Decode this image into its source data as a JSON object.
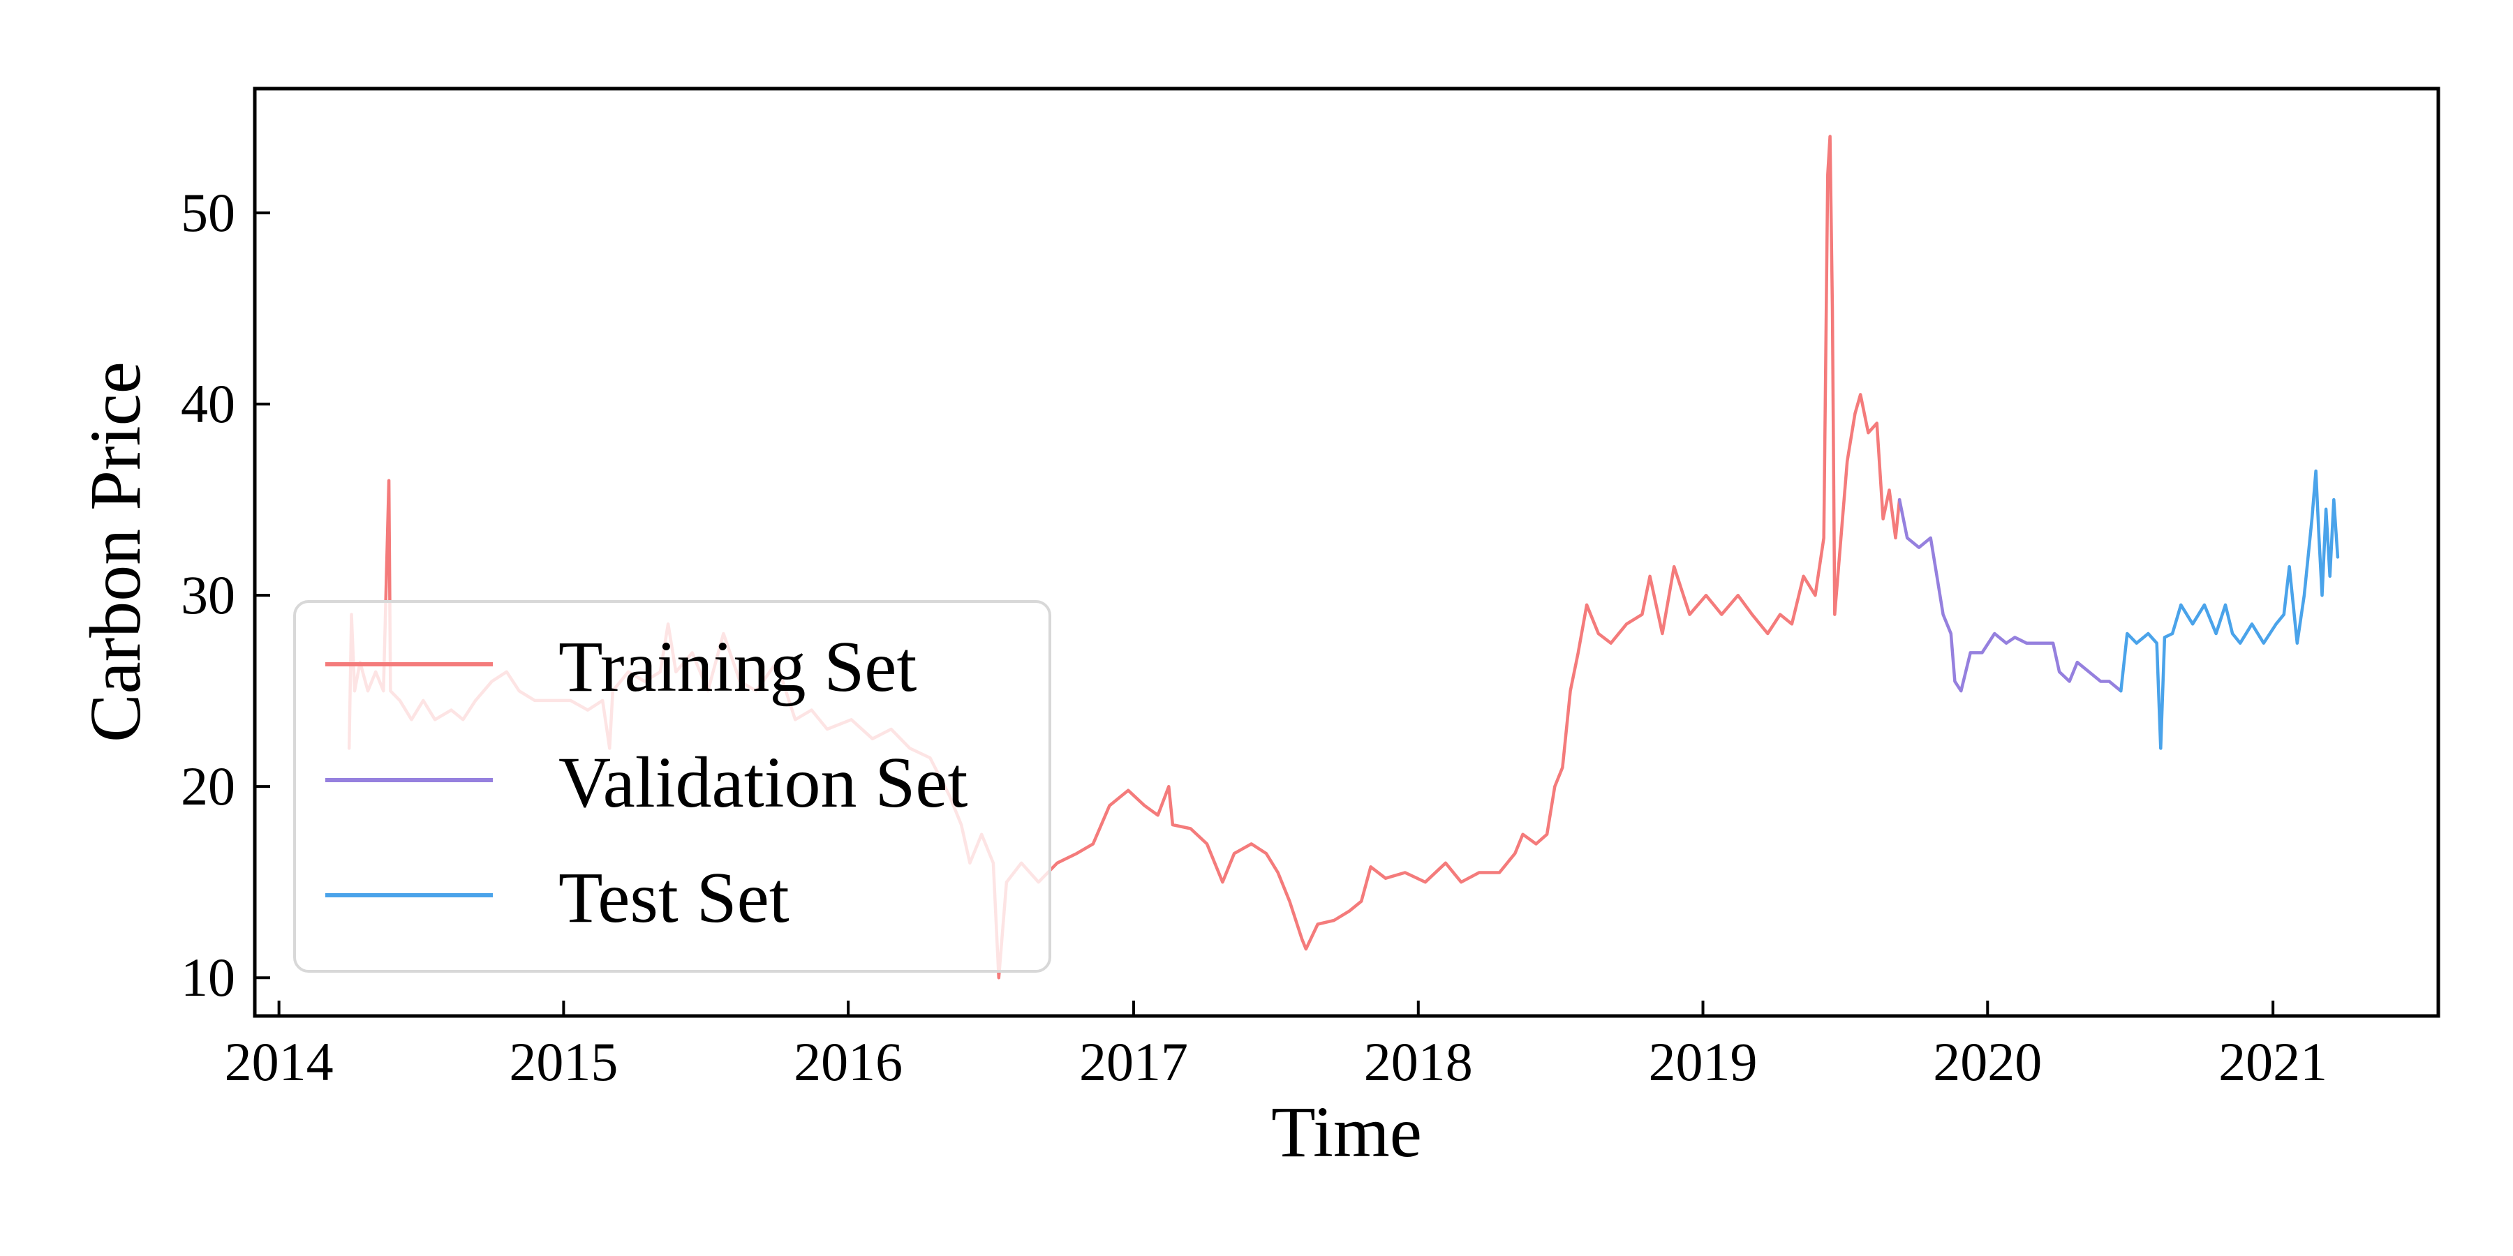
{
  "chart_data": {
    "type": "line",
    "title": "",
    "xlabel": "Time",
    "ylabel": "Carbon Price",
    "xlim": [
      "2013-12-01",
      "2021-08-01"
    ],
    "ylim": [
      8,
      56.5
    ],
    "x_ticks": [
      "2014",
      "2015",
      "2016",
      "2017",
      "2018",
      "2019",
      "2020",
      "2021"
    ],
    "y_ticks": [
      10,
      20,
      30,
      40,
      50
    ],
    "grid": false,
    "legend_position": "lower-left",
    "series": [
      {
        "name": "Training Set",
        "color": "#f47b7b",
        "points": [
          [
            "2014-04-01",
            22
          ],
          [
            "2014-04-04",
            29
          ],
          [
            "2014-04-08",
            25
          ],
          [
            "2014-04-15",
            26.5
          ],
          [
            "2014-04-25",
            25
          ],
          [
            "2014-05-05",
            26
          ],
          [
            "2014-05-15",
            25
          ],
          [
            "2014-05-22",
            36
          ],
          [
            "2014-05-24",
            25
          ],
          [
            "2014-06-05",
            24.5
          ],
          [
            "2014-06-20",
            23.5
          ],
          [
            "2014-07-05",
            24.5
          ],
          [
            "2014-07-20",
            23.5
          ],
          [
            "2014-08-10",
            24
          ],
          [
            "2014-08-25",
            23.5
          ],
          [
            "2014-09-10",
            24.5
          ],
          [
            "2014-10-01",
            25.5
          ],
          [
            "2014-10-20",
            26
          ],
          [
            "2014-11-05",
            25
          ],
          [
            "2014-11-25",
            24.5
          ],
          [
            "2014-12-15",
            24.5
          ],
          [
            "2015-01-10",
            24.5
          ],
          [
            "2015-02-01",
            24
          ],
          [
            "2015-02-20",
            24.5
          ],
          [
            "2015-03-01",
            22
          ],
          [
            "2015-03-05",
            25
          ],
          [
            "2015-03-25",
            26
          ],
          [
            "2015-04-15",
            25.5
          ],
          [
            "2015-05-05",
            26
          ],
          [
            "2015-05-15",
            28.5
          ],
          [
            "2015-05-25",
            26
          ],
          [
            "2015-06-15",
            27
          ],
          [
            "2015-07-05",
            25
          ],
          [
            "2015-07-25",
            28
          ],
          [
            "2015-08-15",
            25.5
          ],
          [
            "2015-09-05",
            25
          ],
          [
            "2015-10-01",
            26.5
          ],
          [
            "2015-10-25",
            23.5
          ],
          [
            "2015-11-15",
            24
          ],
          [
            "2015-12-05",
            23
          ],
          [
            "2016-01-05",
            23.5
          ],
          [
            "2016-02-01",
            22.5
          ],
          [
            "2016-02-25",
            23
          ],
          [
            "2016-03-20",
            22
          ],
          [
            "2016-04-15",
            21.5
          ],
          [
            "2016-05-10",
            19.5
          ],
          [
            "2016-05-25",
            18
          ],
          [
            "2016-06-05",
            16
          ],
          [
            "2016-06-20",
            17.5
          ],
          [
            "2016-07-05",
            16
          ],
          [
            "2016-07-12",
            10
          ],
          [
            "2016-07-22",
            15
          ],
          [
            "2016-08-10",
            16
          ],
          [
            "2016-09-01",
            15
          ],
          [
            "2016-09-25",
            16
          ],
          [
            "2016-10-20",
            16.5
          ],
          [
            "2016-11-10",
            17
          ],
          [
            "2016-12-01",
            19
          ],
          [
            "2016-12-25",
            19.8
          ],
          [
            "2017-01-15",
            19
          ],
          [
            "2017-02-01",
            18.5
          ],
          [
            "2017-02-15",
            20
          ],
          [
            "2017-02-20",
            18
          ],
          [
            "2017-03-15",
            17.8
          ],
          [
            "2017-04-05",
            17
          ],
          [
            "2017-04-25",
            15
          ],
          [
            "2017-05-10",
            16.5
          ],
          [
            "2017-06-01",
            17
          ],
          [
            "2017-06-20",
            16.5
          ],
          [
            "2017-07-05",
            15.5
          ],
          [
            "2017-07-20",
            14
          ],
          [
            "2017-08-05",
            12
          ],
          [
            "2017-08-10",
            11.5
          ],
          [
            "2017-08-25",
            12.8
          ],
          [
            "2017-09-15",
            13
          ],
          [
            "2017-10-05",
            13.5
          ],
          [
            "2017-10-20",
            14
          ],
          [
            "2017-11-01",
            15.8
          ],
          [
            "2017-11-20",
            15.2
          ],
          [
            "2017-12-15",
            15.5
          ],
          [
            "2018-01-10",
            15
          ],
          [
            "2018-02-05",
            16
          ],
          [
            "2018-02-25",
            15
          ],
          [
            "2018-03-20",
            15.5
          ],
          [
            "2018-04-15",
            15.5
          ],
          [
            "2018-05-05",
            16.5
          ],
          [
            "2018-05-15",
            17.5
          ],
          [
            "2018-06-01",
            17
          ],
          [
            "2018-06-15",
            17.5
          ],
          [
            "2018-06-25",
            20
          ],
          [
            "2018-07-05",
            21
          ],
          [
            "2018-07-15",
            25
          ],
          [
            "2018-07-25",
            27
          ],
          [
            "2018-08-05",
            29.5
          ],
          [
            "2018-08-20",
            28
          ],
          [
            "2018-09-05",
            27.5
          ],
          [
            "2018-09-25",
            28.5
          ],
          [
            "2018-10-15",
            29
          ],
          [
            "2018-10-25",
            31
          ],
          [
            "2018-11-10",
            28
          ],
          [
            "2018-11-25",
            31.5
          ],
          [
            "2018-12-15",
            29
          ],
          [
            "2019-01-05",
            30
          ],
          [
            "2019-01-25",
            29
          ],
          [
            "2019-02-15",
            30
          ],
          [
            "2019-03-05",
            29
          ],
          [
            "2019-03-25",
            28
          ],
          [
            "2019-04-10",
            29
          ],
          [
            "2019-04-25",
            28.5
          ],
          [
            "2019-05-10",
            31
          ],
          [
            "2019-05-25",
            30
          ],
          [
            "2019-06-05",
            33
          ],
          [
            "2019-06-10",
            52
          ],
          [
            "2019-06-13",
            54
          ],
          [
            "2019-06-16",
            45
          ],
          [
            "2019-06-19",
            29
          ],
          [
            "2019-06-25",
            32
          ],
          [
            "2019-07-05",
            37
          ],
          [
            "2019-07-15",
            39.5
          ],
          [
            "2019-07-22",
            40.5
          ],
          [
            "2019-08-01",
            38.5
          ],
          [
            "2019-08-12",
            39
          ],
          [
            "2019-08-20",
            34
          ],
          [
            "2019-08-28",
            35.5
          ],
          [
            "2019-09-05",
            33
          ],
          [
            "2019-09-10",
            35
          ]
        ]
      },
      {
        "name": "Validation Set",
        "color": "#9580de",
        "points": [
          [
            "2019-09-10",
            35
          ],
          [
            "2019-09-20",
            33
          ],
          [
            "2019-10-05",
            32.5
          ],
          [
            "2019-10-20",
            33
          ],
          [
            "2019-10-28",
            31
          ],
          [
            "2019-11-05",
            29
          ],
          [
            "2019-11-15",
            28
          ],
          [
            "2019-11-20",
            25.5
          ],
          [
            "2019-11-28",
            25
          ],
          [
            "2019-12-10",
            27
          ],
          [
            "2019-12-25",
            27
          ],
          [
            "2020-01-10",
            28
          ],
          [
            "2020-01-25",
            27.5
          ],
          [
            "2020-02-05",
            27.8
          ],
          [
            "2020-02-20",
            27.5
          ],
          [
            "2020-03-10",
            27.5
          ],
          [
            "2020-03-25",
            27.5
          ],
          [
            "2020-04-02",
            26
          ],
          [
            "2020-04-15",
            25.5
          ],
          [
            "2020-04-25",
            26.5
          ],
          [
            "2020-05-10",
            26
          ],
          [
            "2020-05-25",
            25.5
          ],
          [
            "2020-06-05",
            25.5
          ],
          [
            "2020-06-20",
            25
          ]
        ]
      },
      {
        "name": "Test Set",
        "color": "#4aa3ea",
        "points": [
          [
            "2020-06-20",
            25
          ],
          [
            "2020-06-28",
            28
          ],
          [
            "2020-07-10",
            27.5
          ],
          [
            "2020-07-25",
            28
          ],
          [
            "2020-08-05",
            27.5
          ],
          [
            "2020-08-10",
            22
          ],
          [
            "2020-08-15",
            27.8
          ],
          [
            "2020-08-25",
            28
          ],
          [
            "2020-09-05",
            29.5
          ],
          [
            "2020-09-20",
            28.5
          ],
          [
            "2020-10-05",
            29.5
          ],
          [
            "2020-10-20",
            28
          ],
          [
            "2020-11-01",
            29.5
          ],
          [
            "2020-11-10",
            28
          ],
          [
            "2020-11-20",
            27.5
          ],
          [
            "2020-12-05",
            28.5
          ],
          [
            "2020-12-20",
            27.5
          ],
          [
            "2021-01-05",
            28.5
          ],
          [
            "2021-01-15",
            29
          ],
          [
            "2021-01-22",
            31.5
          ],
          [
            "2021-02-01",
            27.5
          ],
          [
            "2021-02-10",
            30
          ],
          [
            "2021-02-20",
            34
          ],
          [
            "2021-02-25",
            36.5
          ],
          [
            "2021-03-01",
            33
          ],
          [
            "2021-03-05",
            30
          ],
          [
            "2021-03-10",
            34.5
          ],
          [
            "2021-03-15",
            31
          ],
          [
            "2021-03-20",
            35
          ],
          [
            "2021-03-25",
            32
          ]
        ]
      }
    ]
  }
}
